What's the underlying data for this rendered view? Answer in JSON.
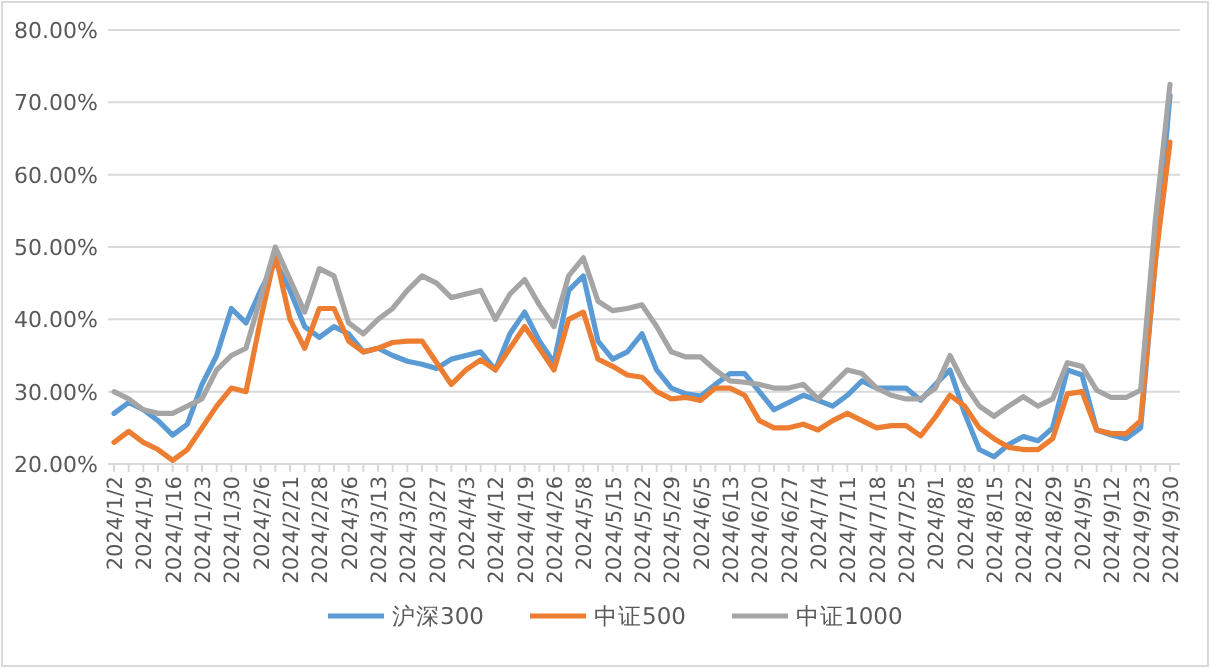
{
  "chart_data": {
    "type": "line",
    "categories": [
      "2024/1/2",
      null,
      "2024/1/9",
      null,
      "2024/1/16",
      null,
      "2024/1/23",
      null,
      "2024/1/30",
      null,
      "2024/2/6",
      null,
      "2024/2/21",
      null,
      "2024/2/28",
      null,
      "2024/3/6",
      null,
      "2024/3/13",
      null,
      "2024/3/20",
      null,
      "2024/3/27",
      null,
      "2024/4/3",
      null,
      "2024/4/12",
      null,
      "2024/4/19",
      null,
      "2024/4/26",
      null,
      "2024/5/8",
      null,
      "2024/5/15",
      null,
      "2024/5/22",
      null,
      "2024/5/29",
      null,
      "2024/6/5",
      null,
      "2024/6/13",
      null,
      "2024/6/20",
      null,
      "2024/6/27",
      null,
      "2024/7/4",
      null,
      "2024/7/11",
      null,
      "2024/7/18",
      null,
      "2024/7/25",
      null,
      "2024/8/1",
      null,
      "2024/8/8",
      null,
      "2024/8/15",
      null,
      "2024/8/22",
      null,
      "2024/8/29",
      null,
      "2024/9/5",
      null,
      "2024/9/12",
      null,
      "2024/9/23",
      null,
      "2024/9/30"
    ],
    "series": [
      {
        "name": "沪深300",
        "color": "#5b9bd5",
        "values": [
          27,
          28.5,
          27.5,
          26,
          24,
          25.5,
          31,
          35,
          41.5,
          39.5,
          44,
          48,
          44,
          39,
          37.5,
          39,
          38,
          35.5,
          36,
          35,
          34.2,
          33.8,
          33.2,
          34.5,
          35,
          35.5,
          33,
          38,
          41,
          37,
          34,
          44,
          46,
          37,
          34.5,
          35.5,
          38,
          33,
          30.5,
          29.7,
          29.4,
          31,
          32.5,
          32.5,
          30,
          27.5,
          28.5,
          29.5,
          28.8,
          28,
          29.5,
          31.5,
          30.5,
          30.5,
          30.5,
          28.8,
          31,
          33,
          27,
          22,
          21,
          22.7,
          23.8,
          23.2,
          25,
          33,
          32.3,
          24.7,
          24,
          23.5,
          25,
          48,
          71
        ]
      },
      {
        "name": "中证500",
        "color": "#ed7d31",
        "values": [
          23,
          24.5,
          23,
          22,
          20.5,
          22,
          25,
          28,
          30.5,
          30,
          40,
          49,
          40,
          36,
          41.5,
          41.5,
          37,
          35.5,
          36,
          36.8,
          37,
          37,
          34,
          31,
          33,
          34.4,
          33,
          36,
          39,
          36,
          33,
          40,
          41,
          34.5,
          33.5,
          32.3,
          32,
          30,
          29,
          29.2,
          28.8,
          30.5,
          30.5,
          29.5,
          26,
          25,
          25,
          25.5,
          24.7,
          26,
          27,
          26,
          25,
          25.3,
          25.3,
          23.9,
          26.5,
          29.5,
          28,
          25,
          23.5,
          22.3,
          22,
          22,
          23.5,
          29.7,
          30,
          24.7,
          24.2,
          24.2,
          26,
          48,
          64.5
        ]
      },
      {
        "name": "中证1000",
        "color": "#a5a5a5",
        "values": [
          30,
          29,
          27.5,
          27,
          27,
          28,
          29,
          33,
          35,
          36,
          43,
          50,
          45.5,
          41,
          47,
          46,
          39.5,
          38,
          40,
          41.5,
          44,
          46,
          45,
          43,
          43.5,
          44,
          40,
          43.5,
          45.5,
          42,
          39,
          46,
          48.5,
          42.5,
          41.2,
          41.5,
          42,
          39,
          35.5,
          34.8,
          34.8,
          33,
          31.5,
          31.3,
          31,
          30.5,
          30.5,
          31,
          29,
          31,
          33,
          32.5,
          30.5,
          29.5,
          29,
          29,
          30.5,
          35,
          31,
          28,
          26.6,
          28,
          29.3,
          28,
          29,
          34,
          33.5,
          30.2,
          29.2,
          29.2,
          30.2,
          53.7,
          72.5
        ]
      }
    ],
    "ylim": [
      20,
      80
    ],
    "yticks": [
      {
        "value": 20,
        "label": "20.00%"
      },
      {
        "value": 30,
        "label": "30.00%"
      },
      {
        "value": 40,
        "label": "40.00%"
      },
      {
        "value": 50,
        "label": "50.00%"
      },
      {
        "value": 60,
        "label": "60.00%"
      },
      {
        "value": 70,
        "label": "70.00%"
      },
      {
        "value": 80,
        "label": "80.00%"
      }
    ],
    "grid": "y",
    "legend": "bottom"
  }
}
